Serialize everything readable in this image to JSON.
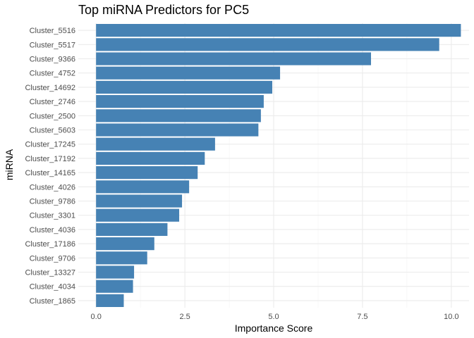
{
  "chart_data": {
    "type": "bar",
    "orientation": "horizontal",
    "title": "Top miRNA Predictors for PC5",
    "xlabel": "Importance Score",
    "ylabel": "miRNA",
    "xlim": [
      -0.5,
      10.5
    ],
    "xticks": [
      0,
      2.5,
      5,
      7.5,
      10
    ],
    "xtick_labels": [
      "0.0",
      "2.5",
      "5.0",
      "7.5",
      "10.0"
    ],
    "bar_color": "#4682B4",
    "grid": true,
    "categories": [
      "Cluster_5516",
      "Cluster_5517",
      "Cluster_9366",
      "Cluster_4752",
      "Cluster_14692",
      "Cluster_2746",
      "Cluster_2500",
      "Cluster_5603",
      "Cluster_17245",
      "Cluster_17192",
      "Cluster_14165",
      "Cluster_4026",
      "Cluster_9786",
      "Cluster_3301",
      "Cluster_4036",
      "Cluster_17186",
      "Cluster_9706",
      "Cluster_13327",
      "Cluster_4034",
      "Cluster_1865"
    ],
    "values": [
      10.27,
      9.66,
      7.74,
      5.18,
      4.96,
      4.72,
      4.64,
      4.57,
      3.35,
      3.06,
      2.86,
      2.62,
      2.42,
      2.34,
      2.01,
      1.64,
      1.44,
      1.07,
      1.04,
      0.78
    ]
  }
}
